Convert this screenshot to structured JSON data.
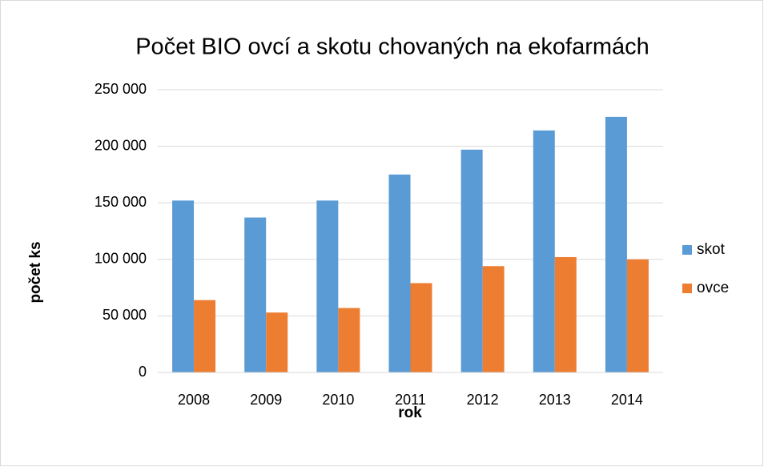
{
  "chart_data": {
    "type": "bar",
    "title": "Počet BIO ovcí a skotu chovaných na ekofarmách",
    "xlabel": "rok",
    "ylabel": "počet ks",
    "categories": [
      "2008",
      "2009",
      "2010",
      "2011",
      "2012",
      "2013",
      "2014"
    ],
    "series": [
      {
        "name": "skot",
        "color": "#5b9bd5",
        "values": [
          152000,
          137000,
          152000,
          175000,
          197000,
          214000,
          226000
        ]
      },
      {
        "name": "ovce",
        "color": "#ed7d31",
        "values": [
          64000,
          53000,
          57000,
          79000,
          94000,
          102000,
          100000
        ]
      }
    ],
    "ylim": [
      0,
      250000
    ],
    "yticks": [
      0,
      {
        "value": 50000,
        "label": "50 000"
      },
      {
        "value": 100000,
        "label": "100 000"
      },
      {
        "value": 150000,
        "label": "150 000"
      },
      {
        "value": 200000,
        "label": "200 000"
      },
      {
        "value": 250000,
        "label": "250 000"
      }
    ],
    "grid": true,
    "legend": "right"
  }
}
